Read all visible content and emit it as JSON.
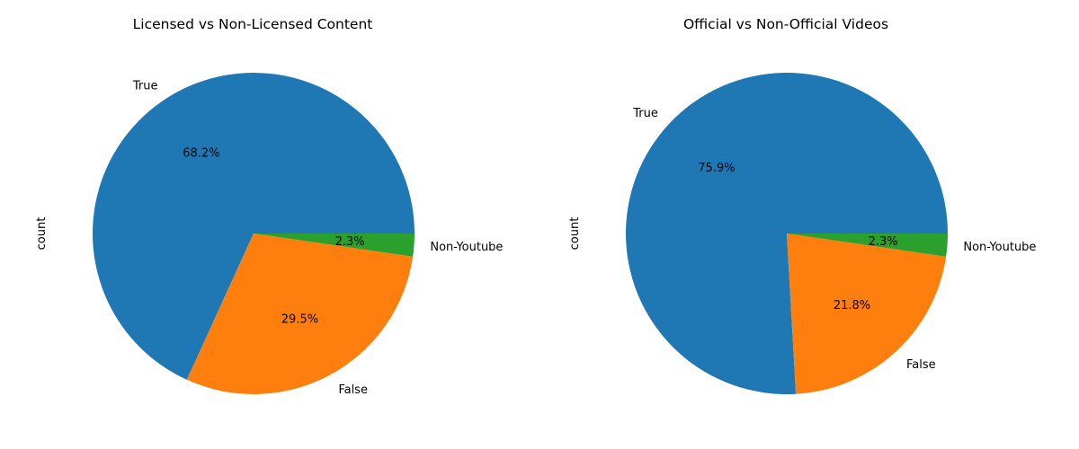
{
  "chart_data": [
    {
      "type": "pie",
      "title": "Licensed vs Non-Licensed Content",
      "ylabel": "count",
      "categories": [
        "True",
        "False",
        "Non-Youtube"
      ],
      "values": [
        68.2,
        29.5,
        2.3
      ],
      "percent_labels": [
        "68.2%",
        "29.5%",
        "2.3%"
      ],
      "colors": [
        "#1f77b4",
        "#ff7f0e",
        "#2ca02c"
      ],
      "start_angle": 0,
      "direction": "counterclockwise"
    },
    {
      "type": "pie",
      "title": "Official vs Non-Official Videos",
      "ylabel": "count",
      "categories": [
        "True",
        "False",
        "Non-Youtube"
      ],
      "values": [
        75.9,
        21.8,
        2.3
      ],
      "percent_labels": [
        "75.9%",
        "21.8%",
        "2.3%"
      ],
      "colors": [
        "#1f77b4",
        "#ff7f0e",
        "#2ca02c"
      ],
      "start_angle": 0,
      "direction": "counterclockwise"
    }
  ]
}
